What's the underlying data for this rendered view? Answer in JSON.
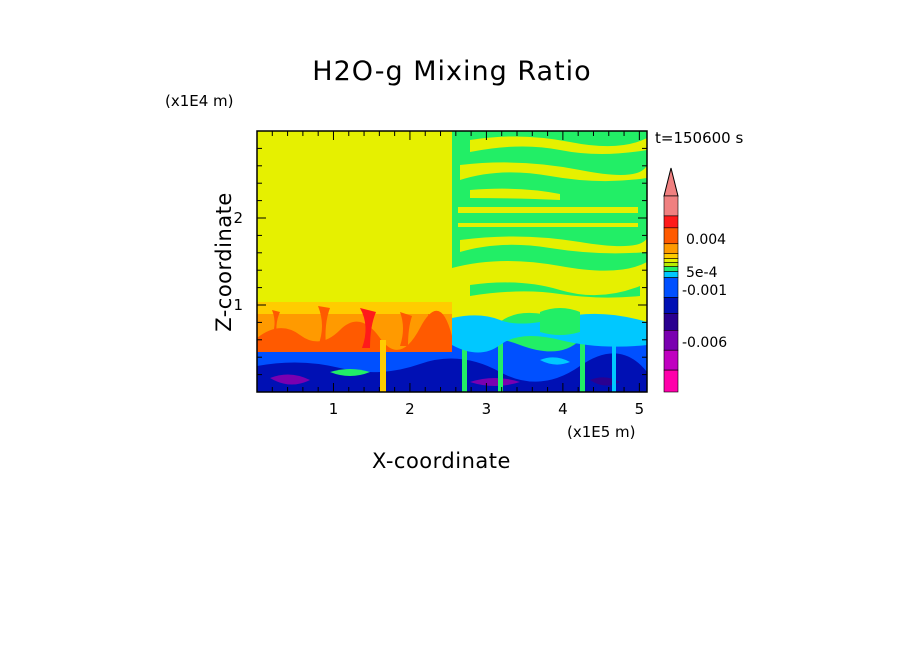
{
  "chart_data": {
    "type": "heatmap",
    "title": "H2O-g Mixing Ratio",
    "xlabel": "X-coordinate",
    "ylabel": "Z-coordinate",
    "x_unit": "(x1E5 m)",
    "y_unit": "(x1E4 m)",
    "time_label": "t=150600 s",
    "xlim": [
      0,
      5.1
    ],
    "ylim": [
      0,
      3.0
    ],
    "x_ticks": [
      1,
      2,
      3,
      4,
      5
    ],
    "y_ticks": [
      1,
      2
    ],
    "colorbar": {
      "extend": "max",
      "labels": [
        {
          "text": "0.004",
          "level": 7.5
        },
        {
          "text": "5e-4",
          "level": 10.5
        },
        {
          "text": "-0.001",
          "level": 11.7
        },
        {
          "text": "-0.006",
          "level": 17
        }
      ],
      "colors": [
        "#f08080",
        "#ff1a1a",
        "#ff5a00",
        "#ff9a00",
        "#ffcc00",
        "#e6f000",
        "#b8ee00",
        "#22ee66",
        "#00c8ff",
        "#0050ff",
        "#0010b4",
        "#2a0090",
        "#7a00b0",
        "#c000c0",
        "#ff00aa"
      ]
    },
    "regions": [
      {
        "name": "upper-left uniform",
        "x": [
          0,
          2.6
        ],
        "z": [
          1.05,
          3.0
        ],
        "class": "yellow"
      },
      {
        "name": "mid-left band",
        "x": [
          0,
          2.6
        ],
        "z": [
          0.5,
          1.05
        ],
        "class": "orange-red"
      },
      {
        "name": "lower band",
        "x": [
          0,
          5.1
        ],
        "z": [
          0,
          0.5
        ],
        "class": "blue-purple"
      },
      {
        "name": "upper-right layered",
        "x": [
          2.6,
          5.1
        ],
        "z": [
          0.5,
          3.0
        ],
        "class": "green-yellow"
      }
    ]
  }
}
